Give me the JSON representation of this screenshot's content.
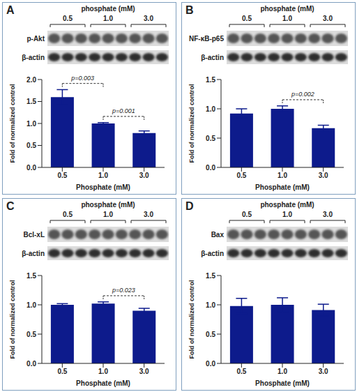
{
  "chart_data": [
    {
      "panel": "A",
      "type": "bar",
      "blot_header": "phosphate (mM)",
      "lanes": [
        "0.5",
        "1.0",
        "3.0"
      ],
      "blot_rows": [
        "p-Akt",
        "β-actin"
      ],
      "categories": [
        "0.5",
        "1.0",
        "3.0"
      ],
      "values": [
        1.6,
        1.0,
        0.78
      ],
      "errors": [
        0.17,
        0.02,
        0.05
      ],
      "color": "#0d1b8c",
      "ylim": [
        0,
        2
      ],
      "yticks": [
        {
          "value": 0,
          "label": "0.0"
        },
        0.5,
        {
          "value": 1,
          "label": "1.0"
        },
        1.5,
        {
          "value": 2,
          "label": "2.0"
        }
      ],
      "xlabel": "Phosphate (mM)",
      "ylabel": "Fold of normalized control",
      "annotations": [
        {
          "from": "0.5",
          "to": "1.0",
          "text": "p=0.003"
        },
        {
          "from": "1.0",
          "to": "3.0",
          "text": "p=0.001"
        }
      ]
    },
    {
      "panel": "B",
      "type": "bar",
      "blot_header": "phosphate (mM)",
      "lanes": [
        "0.5",
        "1.0",
        "3.0"
      ],
      "blot_rows": [
        "NF-κB-p65",
        "β-actin"
      ],
      "categories": [
        "0.5",
        "1.0",
        "3.0"
      ],
      "values": [
        0.92,
        1.0,
        0.67
      ],
      "errors": [
        0.08,
        0.05,
        0.05
      ],
      "color": "#0d1b8c",
      "ylim": [
        0,
        1.5
      ],
      "yticks": [
        {
          "value": 0,
          "label": "0.0"
        },
        0.5,
        {
          "value": 1,
          "label": "1.0"
        },
        1.5
      ],
      "xlabel": "Phosphate (mM)",
      "ylabel": "Fold of normalized control",
      "annotations": [
        {
          "from": "1.0",
          "to": "3.0",
          "text": "p=0.002"
        }
      ]
    },
    {
      "panel": "C",
      "type": "bar",
      "blot_header": "phosphate (mM)",
      "lanes": [
        "0.5",
        "1.0",
        "3.0"
      ],
      "blot_rows": [
        "Bcl-xL",
        "β-actin"
      ],
      "categories": [
        "0.5",
        "1.0",
        "3.0"
      ],
      "values": [
        1.0,
        1.02,
        0.9
      ],
      "errors": [
        0.02,
        0.03,
        0.04
      ],
      "color": "#0d1b8c",
      "ylim": [
        0,
        1.5
      ],
      "yticks": [
        {
          "value": 0,
          "label": "0.0"
        },
        0.5,
        {
          "value": 1,
          "label": "1.0"
        },
        1.5
      ],
      "xlabel": "Phosphate (mM)",
      "ylabel": "Fold of normalized control",
      "annotations": [
        {
          "from": "1.0",
          "to": "3.0",
          "text": "p=0.023"
        }
      ]
    },
    {
      "panel": "D",
      "type": "bar",
      "blot_header": "phosphate (mM)",
      "lanes": [
        "0.5",
        "1.0",
        "3.0"
      ],
      "blot_rows": [
        "Bax",
        "β-actin"
      ],
      "categories": [
        "0.5",
        "1.0",
        "3.0"
      ],
      "values": [
        0.98,
        1.0,
        0.91
      ],
      "errors": [
        0.13,
        0.12,
        0.1
      ],
      "color": "#0d1b8c",
      "ylim": [
        0,
        1.5
      ],
      "yticks": [
        {
          "value": 0,
          "label": "0.0"
        },
        0.5,
        {
          "value": 1,
          "label": "1.0"
        },
        1.5
      ],
      "xlabel": "Phosphate (mM)",
      "ylabel": "Fold of normalized control",
      "annotations": []
    }
  ]
}
